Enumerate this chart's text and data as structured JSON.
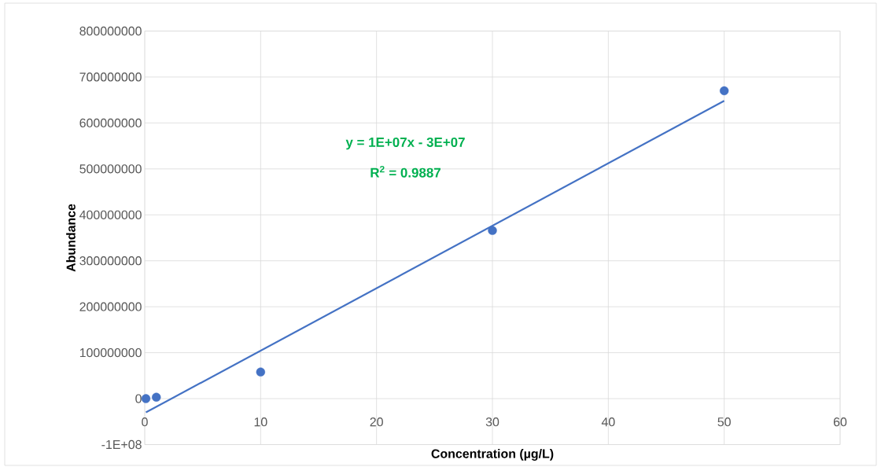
{
  "chart_data": {
    "type": "scatter",
    "xlabel": "Concentration (µg/L)",
    "ylabel": "Abundance",
    "annotations": [
      "y = 1E+07x - 3E+07",
      "R$^{2}$ = 0.9887"
    ],
    "series": [
      {
        "type": "scatter",
        "color": "#4472c4",
        "marker": "circle",
        "x": [
          0.1,
          1,
          10,
          30,
          50
        ],
        "values": [
          0,
          3000000,
          58000000,
          366000000,
          670000000
        ]
      },
      {
        "type": "line",
        "color": "#4472c4",
        "marker": "none",
        "line_style": "solid",
        "x": [
          0.1,
          50
        ],
        "values": [
          -30000000,
          648000000
        ]
      }
    ],
    "xlim": [
      0,
      60
    ],
    "xticks": [
      0,
      10,
      20,
      30,
      40,
      50,
      60
    ],
    "ylim": [
      -100000000,
      800000000
    ],
    "yticks": [
      {
        "value": -100000000,
        "label": "-1E+08"
      },
      0,
      100000000,
      200000000,
      300000000,
      400000000,
      500000000,
      600000000,
      700000000,
      800000000
    ],
    "grid": true,
    "legend": false
  }
}
